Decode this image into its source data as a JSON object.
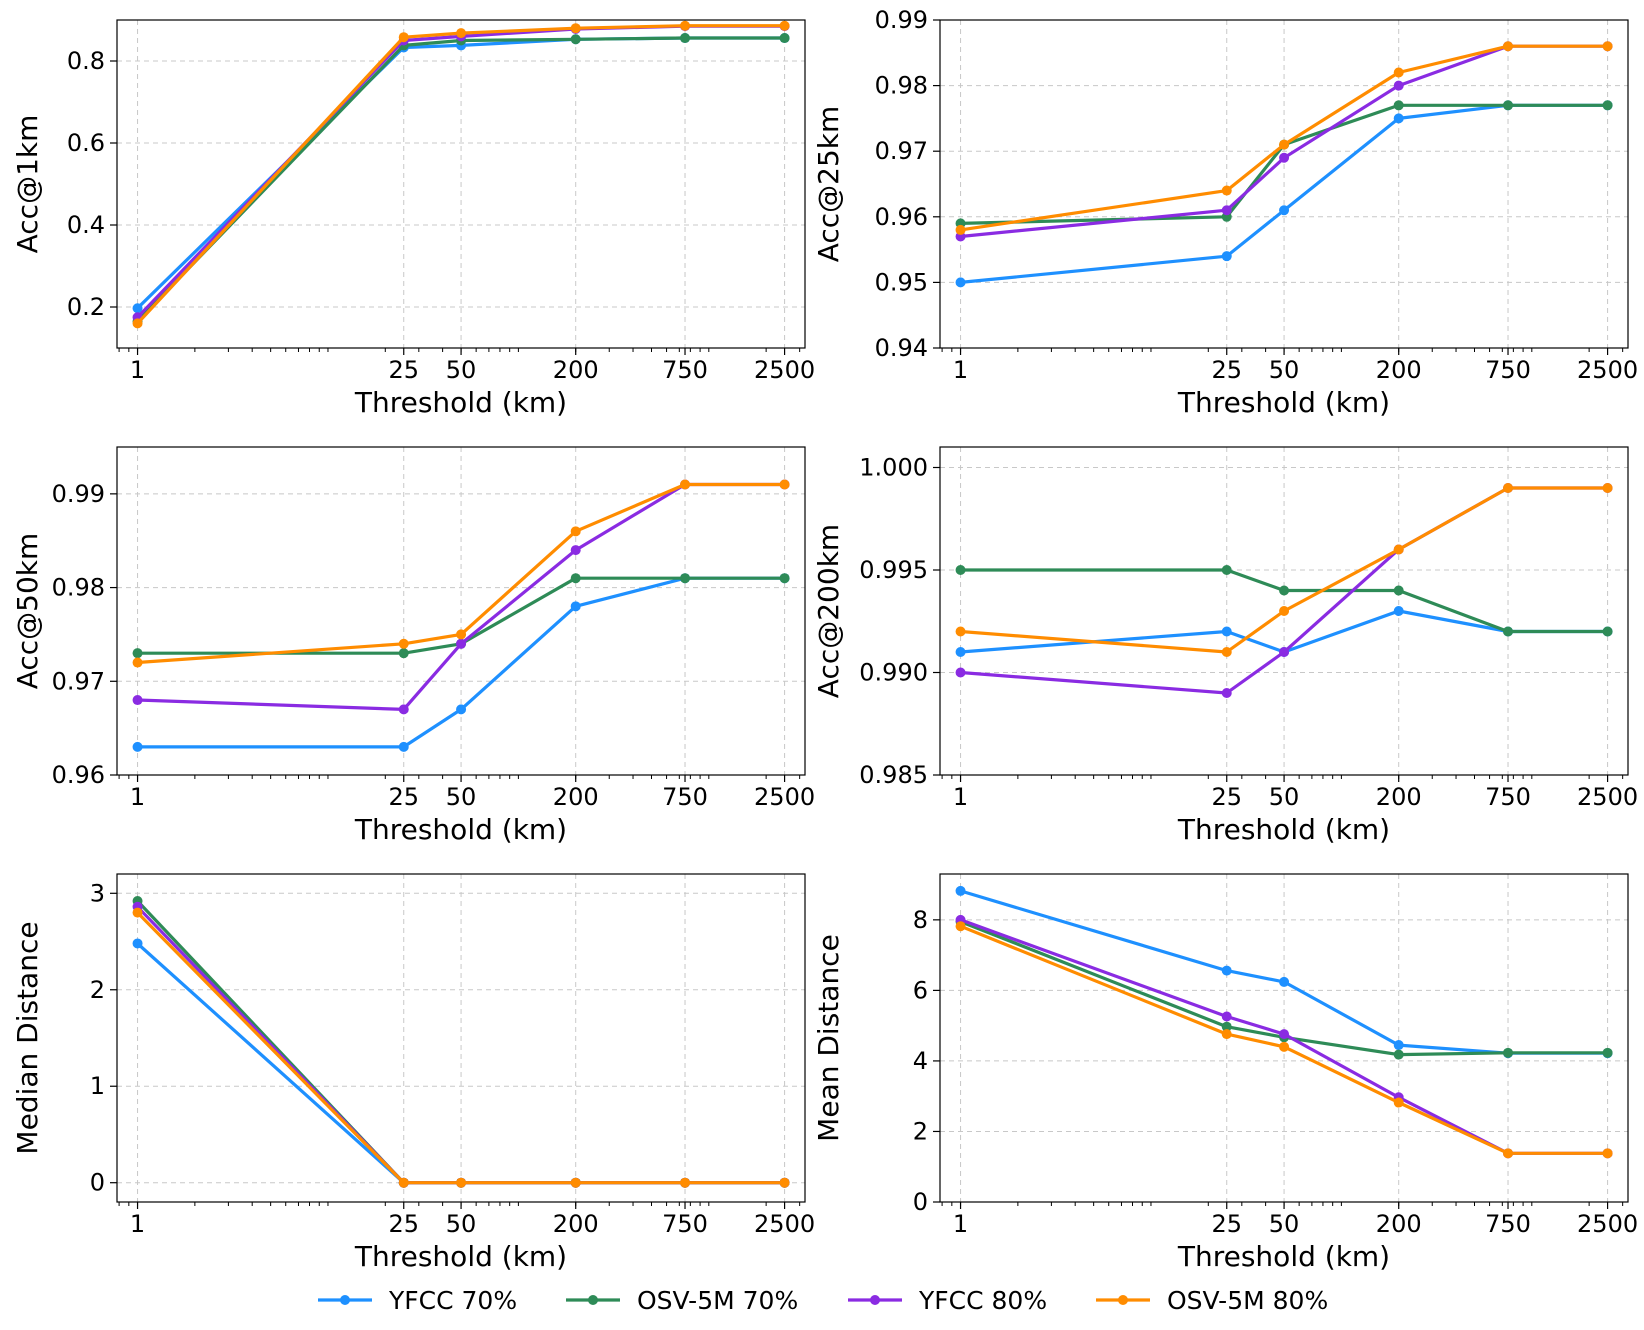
{
  "legend": {
    "placement": "bottom-center",
    "entries": [
      {
        "name": "YFCC 70%",
        "color": "#1E90FF"
      },
      {
        "name": "OSV-5M 70%",
        "color": "#2E8B57"
      },
      {
        "name": "YFCC 80%",
        "color": "#8A2BE2"
      },
      {
        "name": "OSV-5M 80%",
        "color": "#FF8C00"
      }
    ]
  },
  "chart_data": [
    {
      "type": "line",
      "title": "",
      "xlabel": "Threshold (km)",
      "ylabel": "Acc@1km",
      "x": [
        1,
        25,
        50,
        200,
        750,
        2500
      ],
      "xticks": [
        "1",
        "25",
        "50",
        "200",
        "750",
        "2500"
      ],
      "xscale": "log",
      "xlim": [
        0.78,
        3200
      ],
      "ylim": [
        0.1,
        0.9
      ],
      "yticks": [
        "0.2",
        "0.4",
        "0.6",
        "0.8"
      ],
      "grid": true,
      "series": [
        {
          "name": "YFCC 70%",
          "color": "#1E90FF",
          "values": [
            0.197,
            0.833,
            0.838,
            0.853,
            0.856,
            0.856
          ]
        },
        {
          "name": "OSV-5M 70%",
          "color": "#2E8B57",
          "values": [
            0.165,
            0.838,
            0.85,
            0.853,
            0.856,
            0.856
          ]
        },
        {
          "name": "YFCC 80%",
          "color": "#8A2BE2",
          "values": [
            0.175,
            0.85,
            0.86,
            0.878,
            0.885,
            0.885
          ]
        },
        {
          "name": "OSV-5M 80%",
          "color": "#FF8C00",
          "values": [
            0.16,
            0.858,
            0.868,
            0.88,
            0.886,
            0.886
          ]
        }
      ]
    },
    {
      "type": "line",
      "title": "",
      "xlabel": "Threshold (km)",
      "ylabel": "Acc@25km",
      "x": [
        1,
        25,
        50,
        200,
        750,
        2500
      ],
      "xticks": [
        "1",
        "25",
        "50",
        "200",
        "750",
        "2500"
      ],
      "xscale": "log",
      "xlim": [
        0.78,
        3200
      ],
      "ylim": [
        0.94,
        0.99
      ],
      "yticks": [
        "0.94",
        "0.95",
        "0.96",
        "0.97",
        "0.98",
        "0.99"
      ],
      "grid": true,
      "series": [
        {
          "name": "YFCC 70%",
          "color": "#1E90FF",
          "values": [
            0.95,
            0.954,
            0.961,
            0.975,
            0.977,
            0.977
          ]
        },
        {
          "name": "OSV-5M 70%",
          "color": "#2E8B57",
          "values": [
            0.959,
            0.96,
            0.971,
            0.977,
            0.977,
            0.977
          ]
        },
        {
          "name": "YFCC 80%",
          "color": "#8A2BE2",
          "values": [
            0.957,
            0.961,
            0.969,
            0.98,
            0.986,
            0.986
          ]
        },
        {
          "name": "OSV-5M 80%",
          "color": "#FF8C00",
          "values": [
            0.958,
            0.964,
            0.971,
            0.982,
            0.986,
            0.986
          ]
        }
      ]
    },
    {
      "type": "line",
      "title": "",
      "xlabel": "Threshold (km)",
      "ylabel": "Acc@50km",
      "x": [
        1,
        25,
        50,
        200,
        750,
        2500
      ],
      "xticks": [
        "1",
        "25",
        "50",
        "200",
        "750",
        "2500"
      ],
      "xscale": "log",
      "xlim": [
        0.78,
        3200
      ],
      "ylim": [
        0.96,
        0.995
      ],
      "yticks": [
        "0.96",
        "0.97",
        "0.98",
        "0.99"
      ],
      "grid": true,
      "series": [
        {
          "name": "YFCC 70%",
          "color": "#1E90FF",
          "values": [
            0.963,
            0.963,
            0.967,
            0.978,
            0.981,
            0.981
          ]
        },
        {
          "name": "OSV-5M 70%",
          "color": "#2E8B57",
          "values": [
            0.973,
            0.973,
            0.974,
            0.981,
            0.981,
            0.981
          ]
        },
        {
          "name": "YFCC 80%",
          "color": "#8A2BE2",
          "values": [
            0.968,
            0.967,
            0.974,
            0.984,
            0.991,
            0.991
          ]
        },
        {
          "name": "OSV-5M 80%",
          "color": "#FF8C00",
          "values": [
            0.972,
            0.974,
            0.975,
            0.986,
            0.991,
            0.991
          ]
        }
      ]
    },
    {
      "type": "line",
      "title": "",
      "xlabel": "Threshold (km)",
      "ylabel": "Acc@200km",
      "x": [
        1,
        25,
        50,
        200,
        750,
        2500
      ],
      "xticks": [
        "1",
        "25",
        "50",
        "200",
        "750",
        "2500"
      ],
      "xscale": "log",
      "xlim": [
        0.78,
        3200
      ],
      "ylim": [
        0.985,
        1.001
      ],
      "yticks": [
        "0.985",
        "0.990",
        "0.995",
        "1.000"
      ],
      "grid": true,
      "series": [
        {
          "name": "YFCC 70%",
          "color": "#1E90FF",
          "values": [
            0.991,
            0.992,
            0.991,
            0.993,
            0.992,
            0.992
          ]
        },
        {
          "name": "OSV-5M 70%",
          "color": "#2E8B57",
          "values": [
            0.995,
            0.995,
            0.994,
            0.994,
            0.992,
            0.992
          ]
        },
        {
          "name": "YFCC 80%",
          "color": "#8A2BE2",
          "values": [
            0.99,
            0.989,
            0.991,
            0.996,
            0.999,
            0.999
          ]
        },
        {
          "name": "OSV-5M 80%",
          "color": "#FF8C00",
          "values": [
            0.992,
            0.991,
            0.993,
            0.996,
            0.999,
            0.999
          ]
        }
      ]
    },
    {
      "type": "line",
      "title": "",
      "xlabel": "Threshold (km)",
      "ylabel": "Median Distance",
      "x": [
        1,
        25,
        50,
        200,
        750,
        2500
      ],
      "xticks": [
        "1",
        "25",
        "50",
        "200",
        "750",
        "2500"
      ],
      "xscale": "log",
      "xlim": [
        0.78,
        3200
      ],
      "ylim": [
        -0.2,
        3.2
      ],
      "yticks": [
        "0",
        "1",
        "2",
        "3"
      ],
      "grid": true,
      "series": [
        {
          "name": "YFCC 70%",
          "color": "#1E90FF",
          "values": [
            2.48,
            0,
            0,
            0,
            0,
            0
          ]
        },
        {
          "name": "OSV-5M 70%",
          "color": "#2E8B57",
          "values": [
            2.92,
            0,
            0,
            0,
            0,
            0
          ]
        },
        {
          "name": "YFCC 80%",
          "color": "#8A2BE2",
          "values": [
            2.86,
            0,
            0,
            0,
            0,
            0
          ]
        },
        {
          "name": "OSV-5M 80%",
          "color": "#FF8C00",
          "values": [
            2.8,
            0,
            0,
            0,
            0,
            0
          ]
        }
      ]
    },
    {
      "type": "line",
      "title": "",
      "xlabel": "Threshold (km)",
      "ylabel": "Mean Distance",
      "x": [
        1,
        25,
        50,
        200,
        750,
        2500
      ],
      "xticks": [
        "1",
        "25",
        "50",
        "200",
        "750",
        "2500"
      ],
      "xscale": "log",
      "xlim": [
        0.78,
        3200
      ],
      "ylim": [
        0,
        9.3
      ],
      "yticks": [
        "0",
        "2",
        "4",
        "6",
        "8"
      ],
      "grid": true,
      "series": [
        {
          "name": "YFCC 70%",
          "color": "#1E90FF",
          "values": [
            8.82,
            6.56,
            6.24,
            4.45,
            4.22,
            4.22
          ]
        },
        {
          "name": "OSV-5M 70%",
          "color": "#2E8B57",
          "values": [
            7.95,
            4.97,
            4.67,
            4.18,
            4.23,
            4.23
          ]
        },
        {
          "name": "YFCC 80%",
          "color": "#8A2BE2",
          "values": [
            8.0,
            5.26,
            4.76,
            2.97,
            1.38,
            1.38
          ]
        },
        {
          "name": "OSV-5M 80%",
          "color": "#FF8C00",
          "values": [
            7.82,
            4.76,
            4.4,
            2.82,
            1.38,
            1.38
          ]
        }
      ]
    }
  ]
}
